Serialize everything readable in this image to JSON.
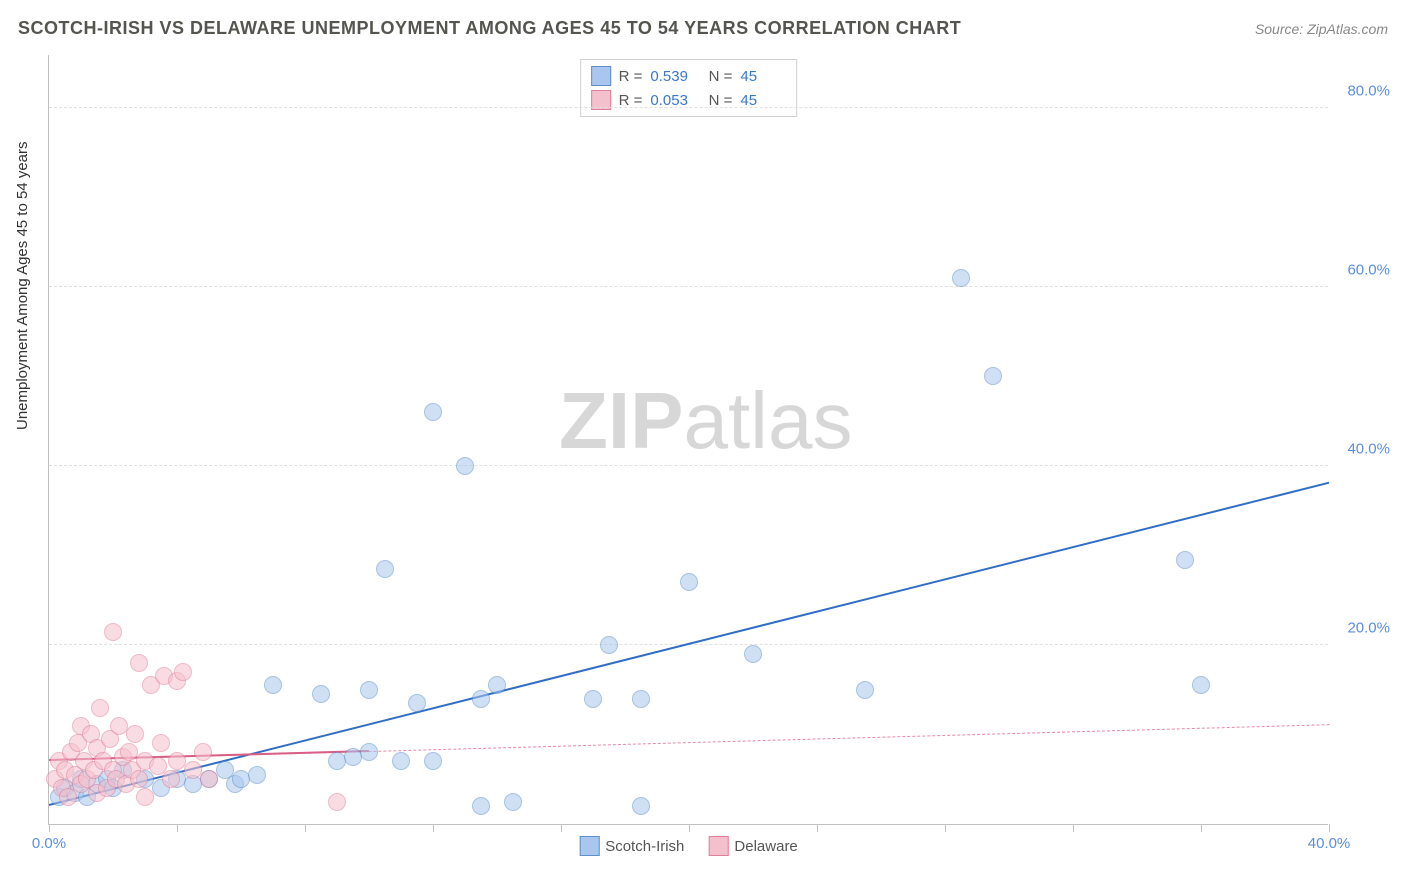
{
  "title": "SCOTCH-IRISH VS DELAWARE UNEMPLOYMENT AMONG AGES 45 TO 54 YEARS CORRELATION CHART",
  "source": "Source: ZipAtlas.com",
  "ylabel": "Unemployment Among Ages 45 to 54 years",
  "watermark_bold": "ZIP",
  "watermark_light": "atlas",
  "chart": {
    "type": "scatter",
    "xlim": [
      0,
      40
    ],
    "ylim": [
      0,
      86
    ],
    "x_ticks": [
      0,
      4,
      8,
      12,
      16,
      20,
      24,
      28,
      32,
      36,
      40
    ],
    "x_tick_labels": {
      "0": "0.0%",
      "40": "40.0%"
    },
    "y_ticks": [
      20,
      40,
      60,
      80
    ],
    "y_tick_labels": {
      "20": "20.0%",
      "40": "40.0%",
      "60": "60.0%",
      "80": "80.0%"
    },
    "background_color": "#ffffff",
    "grid_color": "#e0e0e0",
    "axis_color": "#c0c0c0",
    "tick_label_color": "#5b8fd6",
    "marker_radius": 9,
    "marker_opacity": 0.55,
    "series": [
      {
        "name": "Scotch-Irish",
        "fill": "#a9c7ee",
        "stroke": "#5e8fc9",
        "r_value": "0.539",
        "n_value": "45",
        "trend": {
          "x1": 0,
          "y1": 2,
          "x2": 40,
          "y2": 38,
          "color": "#2f6ec4",
          "width": 2.5,
          "dash": "solid"
        },
        "points": [
          [
            0.3,
            3
          ],
          [
            0.5,
            4
          ],
          [
            0.8,
            3.5
          ],
          [
            1.0,
            5
          ],
          [
            1.2,
            3
          ],
          [
            1.5,
            4.5
          ],
          [
            1.8,
            5
          ],
          [
            2.0,
            4
          ],
          [
            2.3,
            6
          ],
          [
            3.0,
            5
          ],
          [
            3.5,
            4
          ],
          [
            4.0,
            5
          ],
          [
            4.5,
            4.5
          ],
          [
            5.0,
            5
          ],
          [
            5.5,
            6
          ],
          [
            5.8,
            4.5
          ],
          [
            6.0,
            5
          ],
          [
            6.5,
            5.5
          ],
          [
            7.0,
            15.5
          ],
          [
            8.5,
            14.5
          ],
          [
            9.0,
            7
          ],
          [
            9.5,
            7.5
          ],
          [
            10.0,
            15
          ],
          [
            10.0,
            8
          ],
          [
            10.5,
            28.5
          ],
          [
            11.0,
            7
          ],
          [
            11.5,
            13.5
          ],
          [
            12.0,
            46
          ],
          [
            12.0,
            7
          ],
          [
            13.0,
            40
          ],
          [
            13.5,
            2
          ],
          [
            13.5,
            14
          ],
          [
            14.0,
            15.5
          ],
          [
            14.5,
            2.5
          ],
          [
            17.0,
            14
          ],
          [
            17.5,
            20
          ],
          [
            18.5,
            2
          ],
          [
            18.5,
            14
          ],
          [
            20.0,
            27
          ],
          [
            22.0,
            19
          ],
          [
            25.5,
            15
          ],
          [
            28.5,
            61
          ],
          [
            29.5,
            50
          ],
          [
            35.5,
            29.5
          ],
          [
            36.0,
            15.5
          ]
        ]
      },
      {
        "name": "Delaware",
        "fill": "#f5c0cd",
        "stroke": "#e07f9b",
        "r_value": "0.053",
        "n_value": "45",
        "trend": {
          "x1": 0,
          "y1": 7,
          "x2": 40,
          "y2": 11,
          "color": "#e68aa3",
          "width": 1.5,
          "dash": "dashed"
        },
        "trend_solid_to_x": 10,
        "points": [
          [
            0.2,
            5
          ],
          [
            0.3,
            7
          ],
          [
            0.4,
            4
          ],
          [
            0.5,
            6
          ],
          [
            0.6,
            3
          ],
          [
            0.7,
            8
          ],
          [
            0.8,
            5.5
          ],
          [
            0.9,
            9
          ],
          [
            1.0,
            4.5
          ],
          [
            1.0,
            11
          ],
          [
            1.1,
            7
          ],
          [
            1.2,
            5
          ],
          [
            1.3,
            10
          ],
          [
            1.4,
            6
          ],
          [
            1.5,
            8.5
          ],
          [
            1.5,
            3.5
          ],
          [
            1.6,
            13
          ],
          [
            1.7,
            7
          ],
          [
            1.8,
            4
          ],
          [
            1.9,
            9.5
          ],
          [
            2.0,
            6
          ],
          [
            2.0,
            21.5
          ],
          [
            2.1,
            5
          ],
          [
            2.2,
            11
          ],
          [
            2.3,
            7.5
          ],
          [
            2.4,
            4.5
          ],
          [
            2.5,
            8
          ],
          [
            2.6,
            6
          ],
          [
            2.7,
            10
          ],
          [
            2.8,
            5
          ],
          [
            2.8,
            18
          ],
          [
            3.0,
            7
          ],
          [
            3.0,
            3
          ],
          [
            3.2,
            15.5
          ],
          [
            3.4,
            6.5
          ],
          [
            3.5,
            9
          ],
          [
            3.6,
            16.5
          ],
          [
            3.8,
            5
          ],
          [
            4.0,
            16
          ],
          [
            4.0,
            7
          ],
          [
            4.2,
            17
          ],
          [
            4.5,
            6
          ],
          [
            4.8,
            8
          ],
          [
            5.0,
            5
          ],
          [
            9.0,
            2.5
          ]
        ]
      }
    ],
    "legend_bottom": [
      {
        "label": "Scotch-Irish",
        "fill": "#a9c7ee",
        "stroke": "#5e8fc9"
      },
      {
        "label": "Delaware",
        "fill": "#f5c0cd",
        "stroke": "#e07f9b"
      }
    ]
  }
}
